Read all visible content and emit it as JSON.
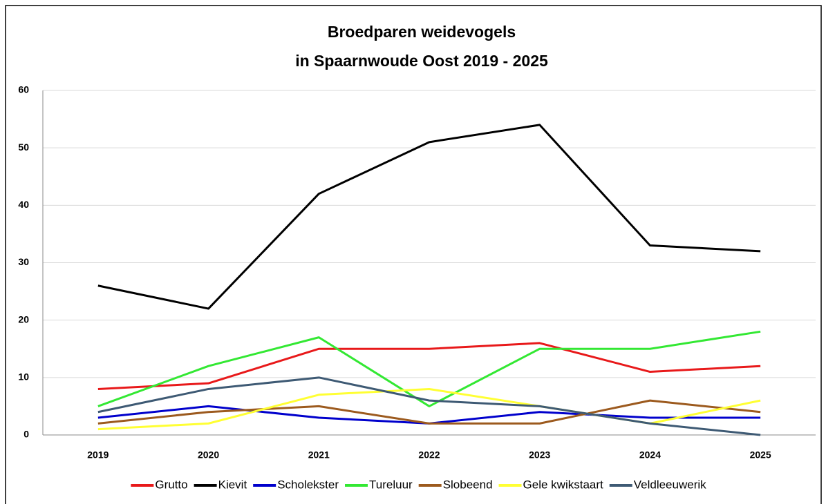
{
  "chart_data": {
    "type": "line",
    "title": [
      "Broedparen weidevogels",
      "in Spaarnwoude Oost 2019 - 2025"
    ],
    "categories": [
      "2019",
      "2020",
      "2021",
      "2022",
      "2023",
      "2024",
      "2025"
    ],
    "series": [
      {
        "name": "Grutto",
        "color": "#e8191a",
        "values": [
          8,
          9,
          15,
          15,
          16,
          11,
          12
        ]
      },
      {
        "name": "Kievit",
        "color": "#000000",
        "values": [
          26,
          22,
          42,
          51,
          54,
          33,
          32
        ]
      },
      {
        "name": "Scholekster",
        "color": "#0000cc",
        "values": [
          3,
          5,
          3,
          2,
          4,
          3,
          3
        ]
      },
      {
        "name": "Tureluur",
        "color": "#33e833",
        "values": [
          5,
          12,
          17,
          5,
          15,
          15,
          18
        ]
      },
      {
        "name": "Slobeend",
        "color": "#9c5a1e",
        "values": [
          2,
          4,
          5,
          2,
          2,
          6,
          4
        ]
      },
      {
        "name": "Gele kwikstaart",
        "color": "#ffff33",
        "values": [
          1,
          2,
          7,
          8,
          5,
          2,
          6
        ]
      },
      {
        "name": "Veldleeuwerik",
        "color": "#3e5a74",
        "values": [
          4,
          8,
          10,
          6,
          5,
          2,
          0
        ]
      }
    ],
    "ylim": [
      0,
      60
    ],
    "yticks": [
      0,
      10,
      20,
      30,
      40,
      50,
      60
    ],
    "grid": true,
    "legend": "bottom"
  }
}
